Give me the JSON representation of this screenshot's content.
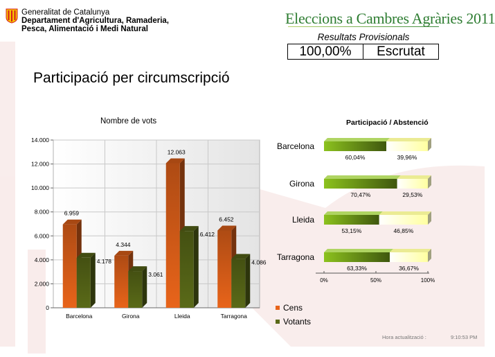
{
  "header": {
    "org_line1": "Generalitat de Catalunya",
    "org_line2": "Departament d'Agricultura, Ramaderia,",
    "org_line3": "Pesca, Alimentació i Medi Natural",
    "elections_title": "Eleccions a Cambres Agràries 2011",
    "results_subtitle": "Resultats Provisionals",
    "counted_percent": "100,00%",
    "counted_label": "Escrutat"
  },
  "page_title": "Participació per circumscripció",
  "colors": {
    "cens": "#e8641a",
    "votants": "#5a6a18",
    "participation": "#8cc21e",
    "abstention": "#ffffa0",
    "logo_red": "#d71920",
    "logo_yellow": "#f5c400"
  },
  "chart_data": [
    {
      "type": "bar",
      "title": "Nombre de vots",
      "categories": [
        "Barcelona",
        "Girona",
        "Lleida",
        "Tarragona"
      ],
      "series": [
        {
          "name": "Cens",
          "values": [
            6959,
            4344,
            12063,
            6452
          ]
        },
        {
          "name": "Votants",
          "values": [
            4178,
            3061,
            6412,
            4086
          ]
        }
      ],
      "value_labels": [
        [
          "6.959",
          "4.344",
          "12.063",
          "6.452"
        ],
        [
          "4.178",
          "3.061",
          "6.412",
          "4.086"
        ]
      ],
      "yticks": [
        "0",
        "2.000",
        "4.000",
        "6.000",
        "8.000",
        "10.000",
        "12.000",
        "14.000"
      ],
      "ylim": [
        0,
        14000
      ],
      "grid": true,
      "legend_position": "bottom-right"
    },
    {
      "type": "bar",
      "orientation": "horizontal-stacked",
      "title": "Participació / Abstenció",
      "categories": [
        "Barcelona",
        "Girona",
        "Lleida",
        "Tarragona"
      ],
      "participation": [
        60.04,
        70.47,
        53.15,
        63.33
      ],
      "abstention": [
        39.96,
        29.53,
        46.85,
        36.67
      ],
      "participation_labels": [
        "60,04%",
        "70,47%",
        "53,15%",
        "63,33%"
      ],
      "abstention_labels": [
        "39,96%",
        "29,53%",
        "46,85%",
        "36,67%"
      ],
      "xticks": [
        "0%",
        "50%",
        "100%"
      ],
      "xlim": [
        0,
        100
      ]
    }
  ],
  "footer": {
    "update_label": "Hora actualització :",
    "update_time": "9:10:53 PM"
  }
}
